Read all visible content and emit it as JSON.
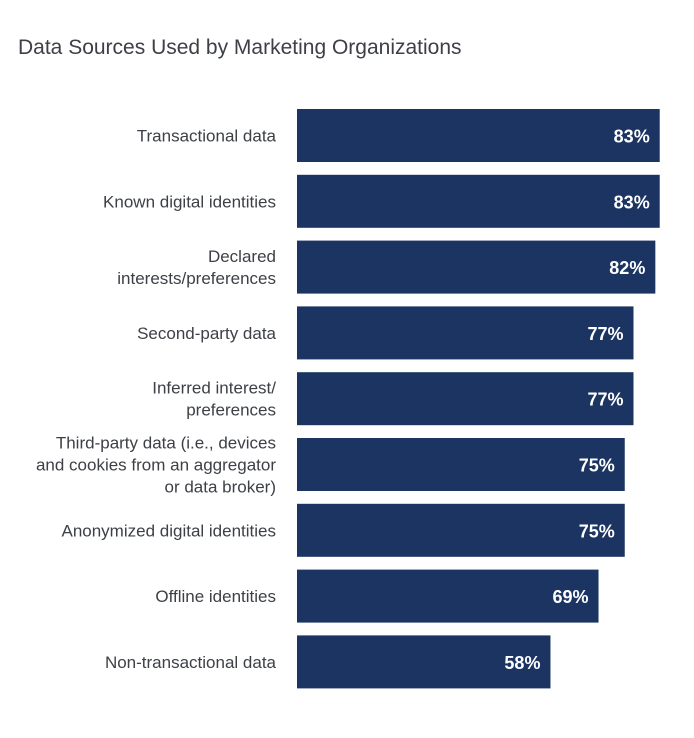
{
  "chart_data": {
    "type": "bar",
    "orientation": "horizontal",
    "title": "Data Sources Used by Marketing Organizations",
    "categories": [
      "Transactional data",
      "Known digital identities",
      "Declared interests/preferences",
      "Second-party data",
      "Inferred interest/ preferences",
      "Third-party data (i.e., devices and cookies from an aggregator or data broker)",
      "Anonymized digital identities",
      "Offline identities",
      "Non-transactional data"
    ],
    "category_lines": [
      [
        "Transactional data"
      ],
      [
        "Known digital identities"
      ],
      [
        "Declared",
        "interests/preferences"
      ],
      [
        "Second-party data"
      ],
      [
        "Inferred interest/",
        "preferences"
      ],
      [
        "Third-party data (i.e., devices",
        "and cookies from an aggregator",
        "or data broker)"
      ],
      [
        "Anonymized digital identities"
      ],
      [
        "Offline identities"
      ],
      [
        "Non-transactional data"
      ]
    ],
    "values": [
      83,
      83,
      82,
      77,
      77,
      75,
      75,
      69,
      58
    ],
    "value_labels": [
      "83%",
      "83%",
      "82%",
      "77%",
      "77%",
      "75%",
      "75%",
      "69%",
      "58%"
    ],
    "xlim": [
      0,
      100
    ],
    "grid": false,
    "legend": "none",
    "colors": {
      "bar": "#1b3461",
      "value_text": "#ffffff",
      "label_text": "#3d4046"
    }
  }
}
